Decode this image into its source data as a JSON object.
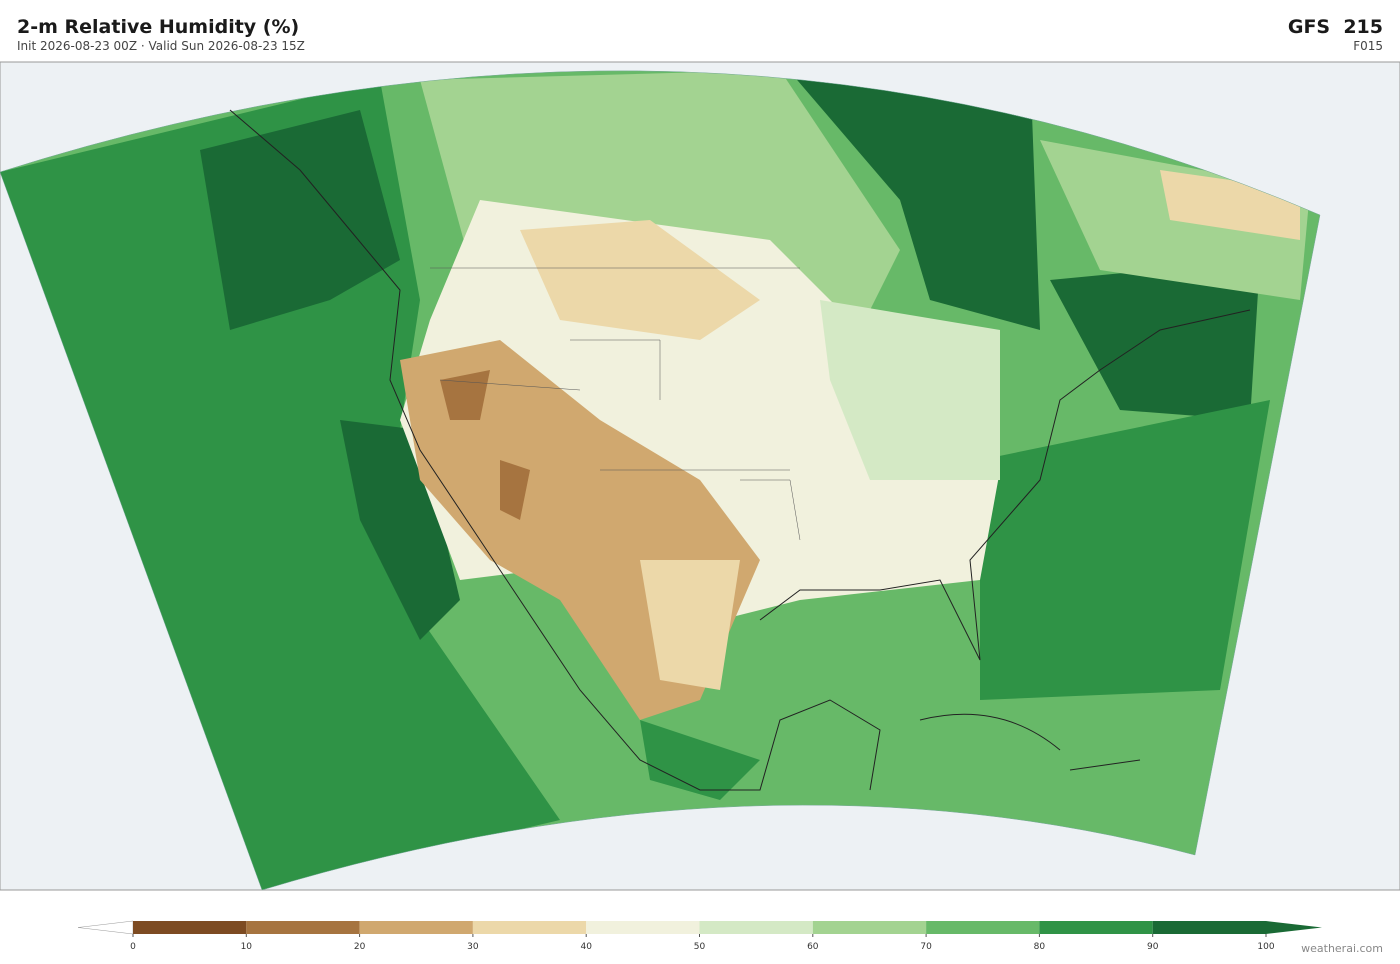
{
  "header": {
    "title": "2-m Relative Humidity  (%)",
    "subtitle": "Init 2026-08-23 00Z  ·  Valid Sun 2026-08-23 15Z",
    "model": "GFS  215",
    "forecast": "F015"
  },
  "colorbar": {
    "ticks": [
      0,
      10,
      20,
      30,
      40,
      50,
      60,
      70,
      80,
      90,
      100
    ],
    "colors": [
      "#7d4b22",
      "#a67440",
      "#d0a86f",
      "#ecd8a9",
      "#f1f1dd",
      "#d4e9c5",
      "#a3d391",
      "#67b968",
      "#2f9346",
      "#1a6a35"
    ],
    "under_color": "#ffffff",
    "over_color": "#1a6a35"
  },
  "footer": {
    "credit": "weatherai.com"
  }
}
